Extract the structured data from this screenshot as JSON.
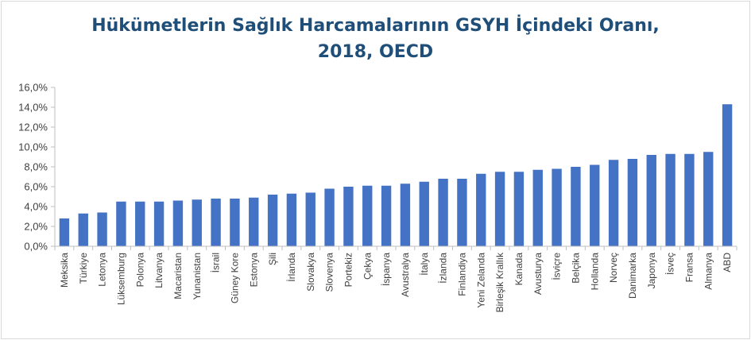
{
  "chart_data": {
    "type": "bar",
    "title_line1": "Hükümetlerin Sağlık Harcamalarının GSYH İçindeki Oranı,",
    "title_line2": "2018, OECD",
    "xlabel": "",
    "ylabel": "",
    "ylim": [
      0,
      16
    ],
    "yticks": [
      "0,0%",
      "2,0%",
      "4,0%",
      "6,0%",
      "8,0%",
      "10,0%",
      "12,0%",
      "14,0%",
      "16,0%"
    ],
    "grid": false,
    "legend": "none",
    "bar_color": "#4472c4",
    "categories": [
      "Meksika",
      "Türkiye",
      "Letonya",
      "Lüksemburg",
      "Polonya",
      "Litvanya",
      "Macaristan",
      "Yunanistan",
      "İsrail",
      "Güney Kore",
      "Estonya",
      "Şili",
      "İrlanda",
      "Slovakya",
      "Slovenya",
      "Portekiz",
      "Çekya",
      "İspanya",
      "Avustralya",
      "İtalya",
      "İzlanda",
      "Finlandiya",
      "Yeni Zelanda",
      "Birleşik Krallık",
      "Kanada",
      "Avusturya",
      "İsviçre",
      "Belçika",
      "Hollanda",
      "Norveç",
      "Danimarka",
      "Japonya",
      "İsveç",
      "Fransa",
      "Almanya",
      "ABD"
    ],
    "values": [
      2.8,
      3.3,
      3.4,
      4.5,
      4.5,
      4.5,
      4.6,
      4.7,
      4.8,
      4.8,
      4.9,
      5.2,
      5.3,
      5.4,
      5.8,
      6.0,
      6.1,
      6.1,
      6.3,
      6.5,
      6.8,
      6.8,
      7.3,
      7.5,
      7.5,
      7.7,
      7.8,
      8.0,
      8.2,
      8.7,
      8.8,
      9.2,
      9.3,
      9.3,
      9.5,
      14.3
    ]
  }
}
